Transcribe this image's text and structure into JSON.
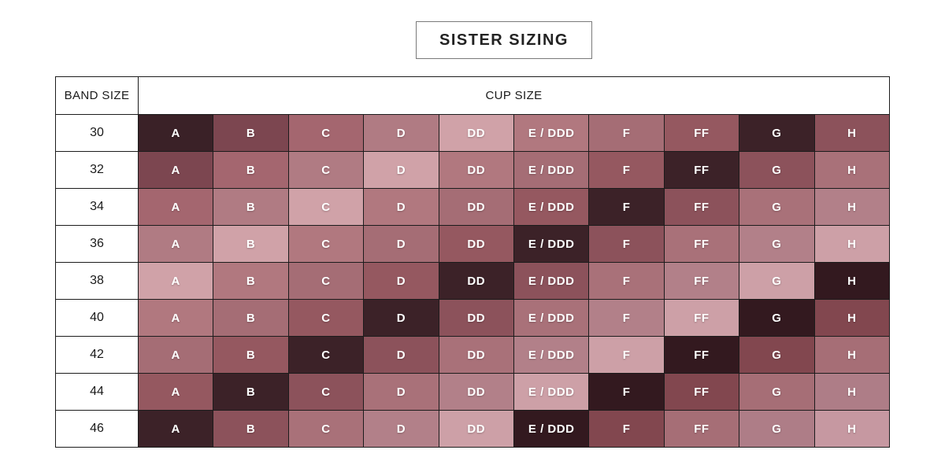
{
  "chart_data": {
    "type": "table",
    "title": "SISTER SIZING",
    "row_axis_label": "BAND SIZE",
    "col_axis_label": "CUP SIZE",
    "band_sizes": [
      "30",
      "32",
      "34",
      "36",
      "38",
      "40",
      "42",
      "44",
      "46"
    ],
    "cup_sizes": [
      "A",
      "B",
      "C",
      "D",
      "DD",
      "E / DDD",
      "F",
      "FF",
      "G",
      "H"
    ],
    "sister_group_rule": "cell color group index = band_row_index + cup_column_index; cells sharing an index are sister sizes and share a color",
    "sister_group_colors": [
      "#3a2127",
      "#7c4650",
      "#a4666f",
      "#b07b83",
      "#d0a2a8",
      "#b1787f",
      "#a56d75",
      "#955860",
      "#3c2228",
      "#8c525b",
      "#a97179",
      "#b28089",
      "#cda0a7",
      "#33191f",
      "#82474f",
      "#a66e76",
      "#ae7d87",
      "#c698a1"
    ],
    "cell_text_color": "#ffffff",
    "header_text_color": "#1a1a1a",
    "table_border_color": "#1c1c1c",
    "title_border_color": "#7a7a7a",
    "background_color": "#ffffff"
  }
}
